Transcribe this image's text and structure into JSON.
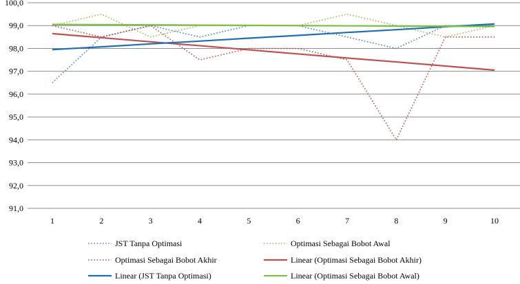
{
  "chart_data": {
    "type": "line",
    "title": "",
    "xlabel": "",
    "ylabel": "",
    "x": [
      1,
      2,
      3,
      4,
      5,
      6,
      7,
      8,
      9,
      10
    ],
    "x_tick_labels": [
      "1",
      "2",
      "3",
      "4",
      "5",
      "6",
      "7",
      "8",
      "9",
      "10"
    ],
    "ylim": [
      91.0,
      100.0
    ],
    "y_ticks": [
      91.0,
      92.0,
      93.0,
      94.0,
      95.0,
      96.0,
      97.0,
      98.0,
      99.0,
      100.0
    ],
    "y_tick_labels": [
      "91,0",
      "92,0",
      "93,0",
      "94,0",
      "95,0",
      "96,0",
      "97,0",
      "98,0",
      "99,0",
      "100,0"
    ],
    "grid": "horizontal",
    "legend_position": "bottom",
    "series": [
      {
        "name": "JST Tanpa Optimasi",
        "style": "dotted",
        "color": "#4F81BD",
        "values": [
          96.5,
          98.5,
          99.0,
          98.5,
          99.0,
          99.0,
          98.5,
          98.0,
          99.0,
          99.0
        ]
      },
      {
        "name": "Optimasi Sebagai Bobot Awal",
        "style": "dotted",
        "color": "#9BBB59",
        "values": [
          99.0,
          99.5,
          98.5,
          99.0,
          99.0,
          99.0,
          99.5,
          99.0,
          98.5,
          99.0
        ]
      },
      {
        "name": "Optimasi Sebagai Bobot Akhir",
        "style": "dotted",
        "color": "#C0504D",
        "values": [
          99.0,
          98.5,
          99.0,
          97.5,
          98.0,
          98.0,
          97.5,
          94.0,
          98.5,
          98.5
        ]
      },
      {
        "name": "Linear (Optimasi Sebagai Bobot Akhir)",
        "style": "solid",
        "color": "#C0504D",
        "values": [
          98.65,
          98.47,
          98.29,
          98.12,
          97.94,
          97.76,
          97.58,
          97.41,
          97.23,
          97.05
        ]
      },
      {
        "name": "Linear (JST Tanpa Optimasi)",
        "style": "solid",
        "color": "#1F6FB2",
        "values": [
          97.95,
          98.07,
          98.2,
          98.32,
          98.45,
          98.57,
          98.7,
          98.82,
          98.95,
          99.07
        ]
      },
      {
        "name": "Linear (Optimasi Sebagai Bobot Awal)",
        "style": "solid",
        "color": "#7AC143",
        "values": [
          99.05,
          99.04,
          99.03,
          99.02,
          99.01,
          99.0,
          98.99,
          98.98,
          98.97,
          98.96
        ]
      }
    ]
  }
}
